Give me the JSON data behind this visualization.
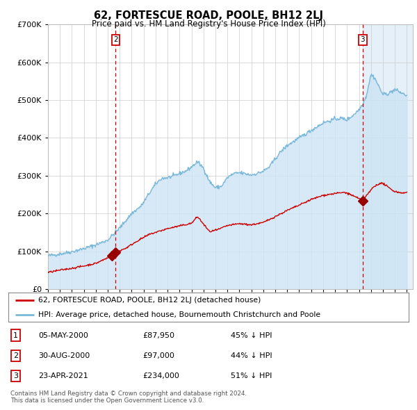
{
  "title": "62, FORTESCUE ROAD, POOLE, BH12 2LJ",
  "subtitle": "Price paid vs. HM Land Registry's House Price Index (HPI)",
  "legend_line1": "62, FORTESCUE ROAD, POOLE, BH12 2LJ (detached house)",
  "legend_line2": "HPI: Average price, detached house, Bournemouth Christchurch and Poole",
  "transactions": [
    {
      "id": 1,
      "date": "05-MAY-2000",
      "price": "£87,950",
      "pct": "45% ↓ HPI",
      "x_year": 2000.35,
      "price_val": 87950
    },
    {
      "id": 2,
      "date": "30-AUG-2000",
      "price": "£97,000",
      "pct": "44% ↓ HPI",
      "x_year": 2000.66,
      "price_val": 97000
    },
    {
      "id": 3,
      "date": "23-APR-2021",
      "price": "£234,000",
      "pct": "51% ↓ HPI",
      "x_year": 2021.31,
      "price_val": 234000
    }
  ],
  "footnote1": "Contains HM Land Registry data © Crown copyright and database right 2024.",
  "footnote2": "This data is licensed under the Open Government Licence v3.0.",
  "hpi_color": "#7ab8d9",
  "hpi_fill_color": "#cde4f5",
  "price_color": "#cc0000",
  "marker_color": "#990000",
  "dashed_line_color": "#cc0000",
  "background_color": "#ffffff",
  "shaded_region_color": "#daeaf6",
  "ylim": [
    0,
    700000
  ],
  "xlim_start": 1995.0,
  "xlim_end": 2025.5
}
